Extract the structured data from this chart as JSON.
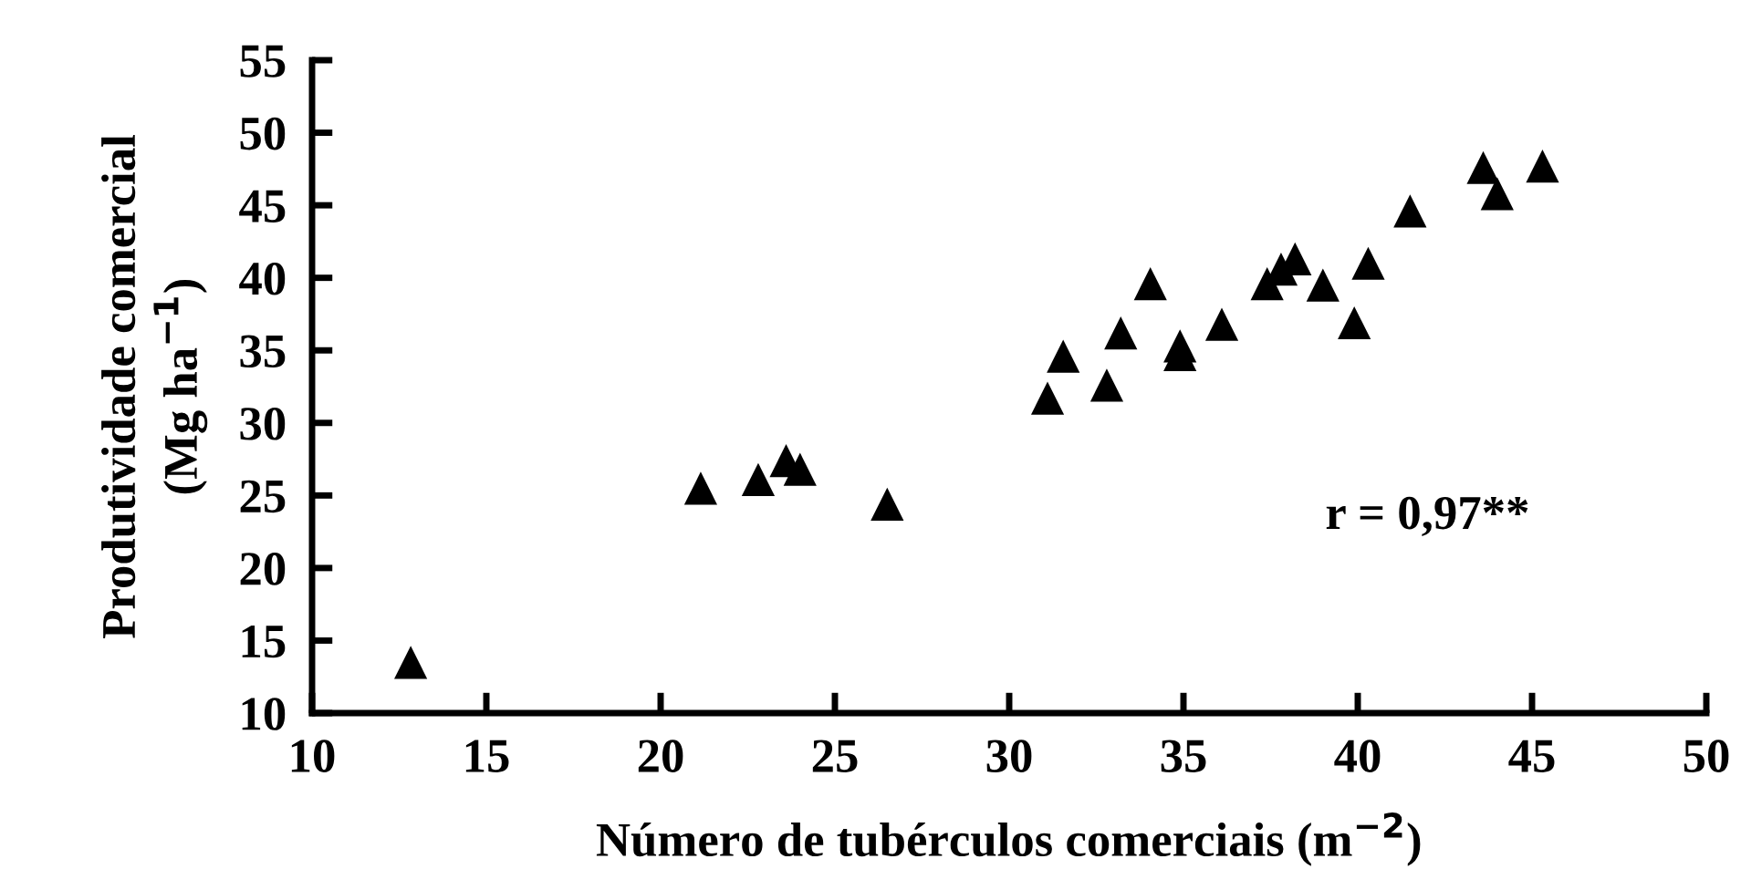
{
  "chart_data": {
    "type": "scatter",
    "xlabel": "Número de tubérculos comerciais (m$^{−2}$)",
    "ylabel": "Produtividade comercial\n(Mg ha$^{−1}$)",
    "annotations": [
      "r = 0,97**"
    ],
    "x": [
      12.83,
      21.15,
      22.8,
      23.6,
      24.0,
      26.5,
      31.1,
      31.55,
      32.8,
      33.2,
      34.05,
      34.9,
      34.9,
      36.1,
      37.4,
      37.8,
      38.2,
      39.0,
      39.9,
      40.3,
      41.5,
      43.6,
      44.0,
      45.3
    ],
    "values": [
      13.5,
      25.5,
      26.1,
      27.4,
      26.8,
      24.4,
      31.7,
      34.6,
      32.6,
      36.2,
      39.6,
      35.3,
      34.7,
      36.8,
      39.6,
      40.6,
      41.3,
      39.5,
      36.9,
      41.0,
      44.6,
      47.6,
      45.8,
      47.7
    ],
    "color": "#000000",
    "marker": "triangle",
    "xlim": [
      10,
      50
    ],
    "xticks": [
      10,
      15,
      20,
      25,
      30,
      35,
      40,
      45,
      50
    ],
    "ylim": [
      10,
      55
    ],
    "yticks": [
      10,
      15,
      20,
      25,
      30,
      35,
      40,
      45,
      50,
      55
    ],
    "grid": false,
    "legend": false
  }
}
